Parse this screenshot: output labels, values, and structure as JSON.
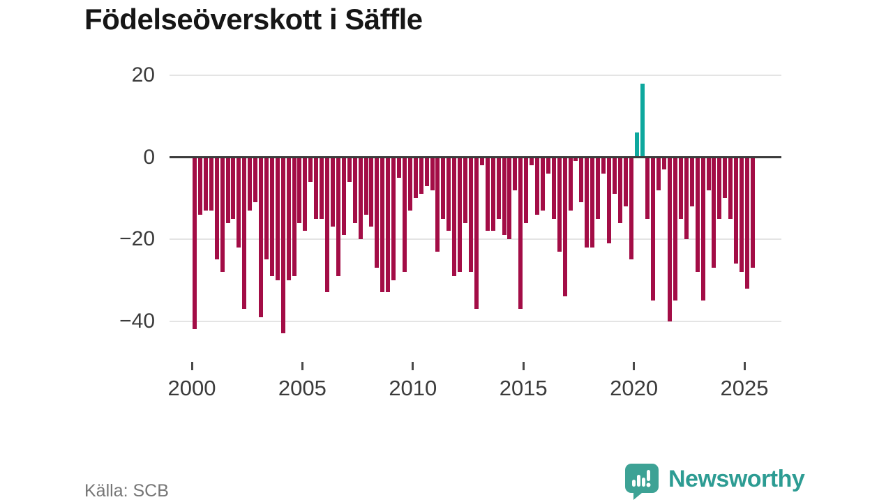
{
  "title": "Födelseöverskott i Säffle",
  "source": "Källa: SCB",
  "branding": {
    "name": "Newsworthy",
    "logo_icon": "newsworthy-speech-bubble-bar-chart-icon"
  },
  "colors": {
    "bar_negative": "#a30d46",
    "bar_positive": "#0ea89e",
    "logo_teal": "#3da295",
    "logo_text": "#2d9c93",
    "title_text": "#161616",
    "axis_text": "#3b3b3b",
    "source_text": "#767676",
    "gridline": "#e4e4e4",
    "zero_line": "#3c3c3c",
    "background": "#ffffff"
  },
  "chart_data": {
    "type": "bar",
    "title": "Födelseöverskott i Säffle",
    "frequency": "quarterly",
    "grid": "horizontal",
    "legend": "none",
    "ylim": [
      -46,
      22
    ],
    "yticks": [
      20,
      0,
      -20,
      -40
    ],
    "xticks": [
      2000,
      2005,
      2010,
      2015,
      2020,
      2025
    ],
    "periods": [
      "2000 Q1",
      "2000 Q2",
      "2000 Q3",
      "2000 Q4",
      "2001 Q1",
      "2001 Q2",
      "2001 Q3",
      "2001 Q4",
      "2002 Q1",
      "2002 Q2",
      "2002 Q3",
      "2002 Q4",
      "2003 Q1",
      "2003 Q2",
      "2003 Q3",
      "2003 Q4",
      "2004 Q1",
      "2004 Q2",
      "2004 Q3",
      "2004 Q4",
      "2005 Q1",
      "2005 Q2",
      "2005 Q3",
      "2005 Q4",
      "2006 Q1",
      "2006 Q2",
      "2006 Q3",
      "2006 Q4",
      "2007 Q1",
      "2007 Q2",
      "2007 Q3",
      "2007 Q4",
      "2008 Q1",
      "2008 Q2",
      "2008 Q3",
      "2008 Q4",
      "2009 Q1",
      "2009 Q2",
      "2009 Q3",
      "2009 Q4",
      "2010 Q1",
      "2010 Q2",
      "2010 Q3",
      "2010 Q4",
      "2011 Q1",
      "2011 Q2",
      "2011 Q3",
      "2011 Q4",
      "2012 Q1",
      "2012 Q2",
      "2012 Q3",
      "2012 Q4",
      "2013 Q1",
      "2013 Q2",
      "2013 Q3",
      "2013 Q4",
      "2014 Q1",
      "2014 Q2",
      "2014 Q3",
      "2014 Q4",
      "2015 Q1",
      "2015 Q2",
      "2015 Q3",
      "2015 Q4",
      "2016 Q1",
      "2016 Q2",
      "2016 Q3",
      "2016 Q4",
      "2017 Q1",
      "2017 Q2",
      "2017 Q3",
      "2017 Q4",
      "2018 Q1",
      "2018 Q2",
      "2018 Q3",
      "2018 Q4",
      "2019 Q1",
      "2019 Q2",
      "2019 Q3",
      "2019 Q4",
      "2020 Q1",
      "2020 Q2",
      "2020 Q3",
      "2020 Q4",
      "2021 Q1",
      "2021 Q2",
      "2021 Q3",
      "2021 Q4",
      "2022 Q1",
      "2022 Q2",
      "2022 Q3",
      "2022 Q4",
      "2023 Q1",
      "2023 Q2",
      "2023 Q3",
      "2023 Q4",
      "2024 Q1",
      "2024 Q2",
      "2024 Q3",
      "2024 Q4",
      "2025 Q1",
      "2025 Q2"
    ],
    "values": [
      -42,
      -14,
      -13,
      -13,
      -25,
      -28,
      -16,
      -15,
      -22,
      -37,
      -13,
      -11,
      -39,
      -25,
      -29,
      -30,
      -43,
      -30,
      -29,
      -16,
      -18,
      -6,
      -15,
      -15,
      -33,
      -17,
      -29,
      -19,
      -6,
      -16,
      -20,
      -14,
      -17,
      -27,
      -33,
      -33,
      -30,
      -5,
      -28,
      -13,
      -10,
      -9,
      -7,
      -8,
      -23,
      -15,
      -18,
      -29,
      -28,
      -16,
      -28,
      -37,
      -2,
      -18,
      -18,
      -15,
      -19,
      -20,
      -8,
      -37,
      -16,
      -2,
      -14,
      -13,
      -4,
      -15,
      -23,
      -34,
      -13,
      -1,
      -11,
      -22,
      -22,
      -15,
      -4,
      -21,
      -9,
      -16,
      -12,
      -25,
      6,
      18,
      -15,
      -35,
      -8,
      -3,
      -40,
      -35,
      -15,
      -20,
      -12,
      -28,
      -35,
      -8,
      -27,
      -15,
      -10,
      -15,
      -26,
      -28,
      -32,
      -27
    ]
  }
}
